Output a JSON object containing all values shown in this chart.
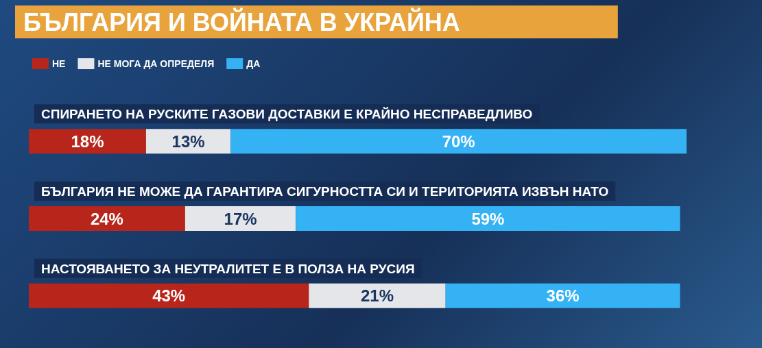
{
  "chart_data": {
    "type": "bar",
    "orientation": "horizontal",
    "stacked": true,
    "title": "БЪЛГАРИЯ И ВОЙНАТА В УКРАЙНА",
    "categories": [
      "СПИРАНЕТО НА РУСКИТЕ ГАЗОВИ ДОСТАВКИ Е КРАЙНО НЕСПРАВЕДЛИВО",
      "БЪЛГАРИЯ НЕ МОЖЕ ДА ГАРАНТИРА СИГУРНОСТТА СИ И ТЕРИТОРИЯТА ИЗВЪН НАТО",
      "НАСТОЯВАНЕТО ЗА НЕУТРАЛИТЕТ Е В ПОЛЗА НА РУСИЯ"
    ],
    "series": [
      {
        "name": "НЕ",
        "color": "#b8251b",
        "values": [
          18,
          24,
          43
        ],
        "value_labels": [
          "18%",
          "24%",
          "43%"
        ]
      },
      {
        "name": "НЕ МОГА ДА ОПРЕДЕЛЯ",
        "color": "#e4e6ea",
        "values": [
          13,
          17,
          21
        ],
        "value_labels": [
          "13%",
          "17%",
          "21%"
        ]
      },
      {
        "name": "ДА",
        "color": "#34b2f4",
        "values": [
          70,
          59,
          36
        ],
        "value_labels": [
          "70%",
          "59%",
          "36%"
        ]
      }
    ],
    "legend": "top left",
    "tick_labels": "y",
    "grid": false
  }
}
